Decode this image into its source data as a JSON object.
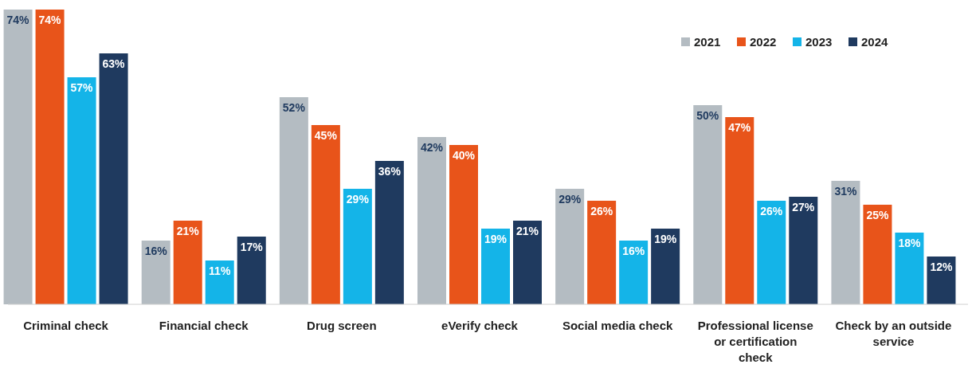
{
  "chart_data": {
    "type": "bar",
    "categories": [
      "Criminal check",
      "Financial check",
      "Drug screen",
      "eVerify check",
      "Social media check",
      "Professional license or certification check",
      "Check by an outside service"
    ],
    "series": [
      {
        "name": "2021",
        "color": "#b4bcc2",
        "values": [
          74,
          16,
          52,
          42,
          29,
          50,
          31
        ],
        "value_labels": [
          "74%",
          "16%",
          "52%",
          "42%",
          "29%",
          "50%",
          "31%"
        ]
      },
      {
        "name": "2022",
        "color": "#e8541a",
        "values": [
          74,
          21,
          45,
          40,
          26,
          47,
          25
        ],
        "value_labels": [
          "74%",
          "21%",
          "45%",
          "40%",
          "26%",
          "47%",
          "25%"
        ]
      },
      {
        "name": "2023",
        "color": "#14b4e8",
        "values": [
          57,
          11,
          29,
          19,
          16,
          26,
          18
        ],
        "value_labels": [
          "57%",
          "11%",
          "29%",
          "19%",
          "16%",
          "26%",
          "18%"
        ]
      },
      {
        "name": "2024",
        "color": "#1f3a5f",
        "values": [
          63,
          17,
          36,
          21,
          19,
          27,
          12
        ],
        "value_labels": [
          "63%",
          "17%",
          "36%",
          "21%",
          "19%",
          "27%",
          "12%"
        ]
      }
    ],
    "legend": "top right"
  }
}
